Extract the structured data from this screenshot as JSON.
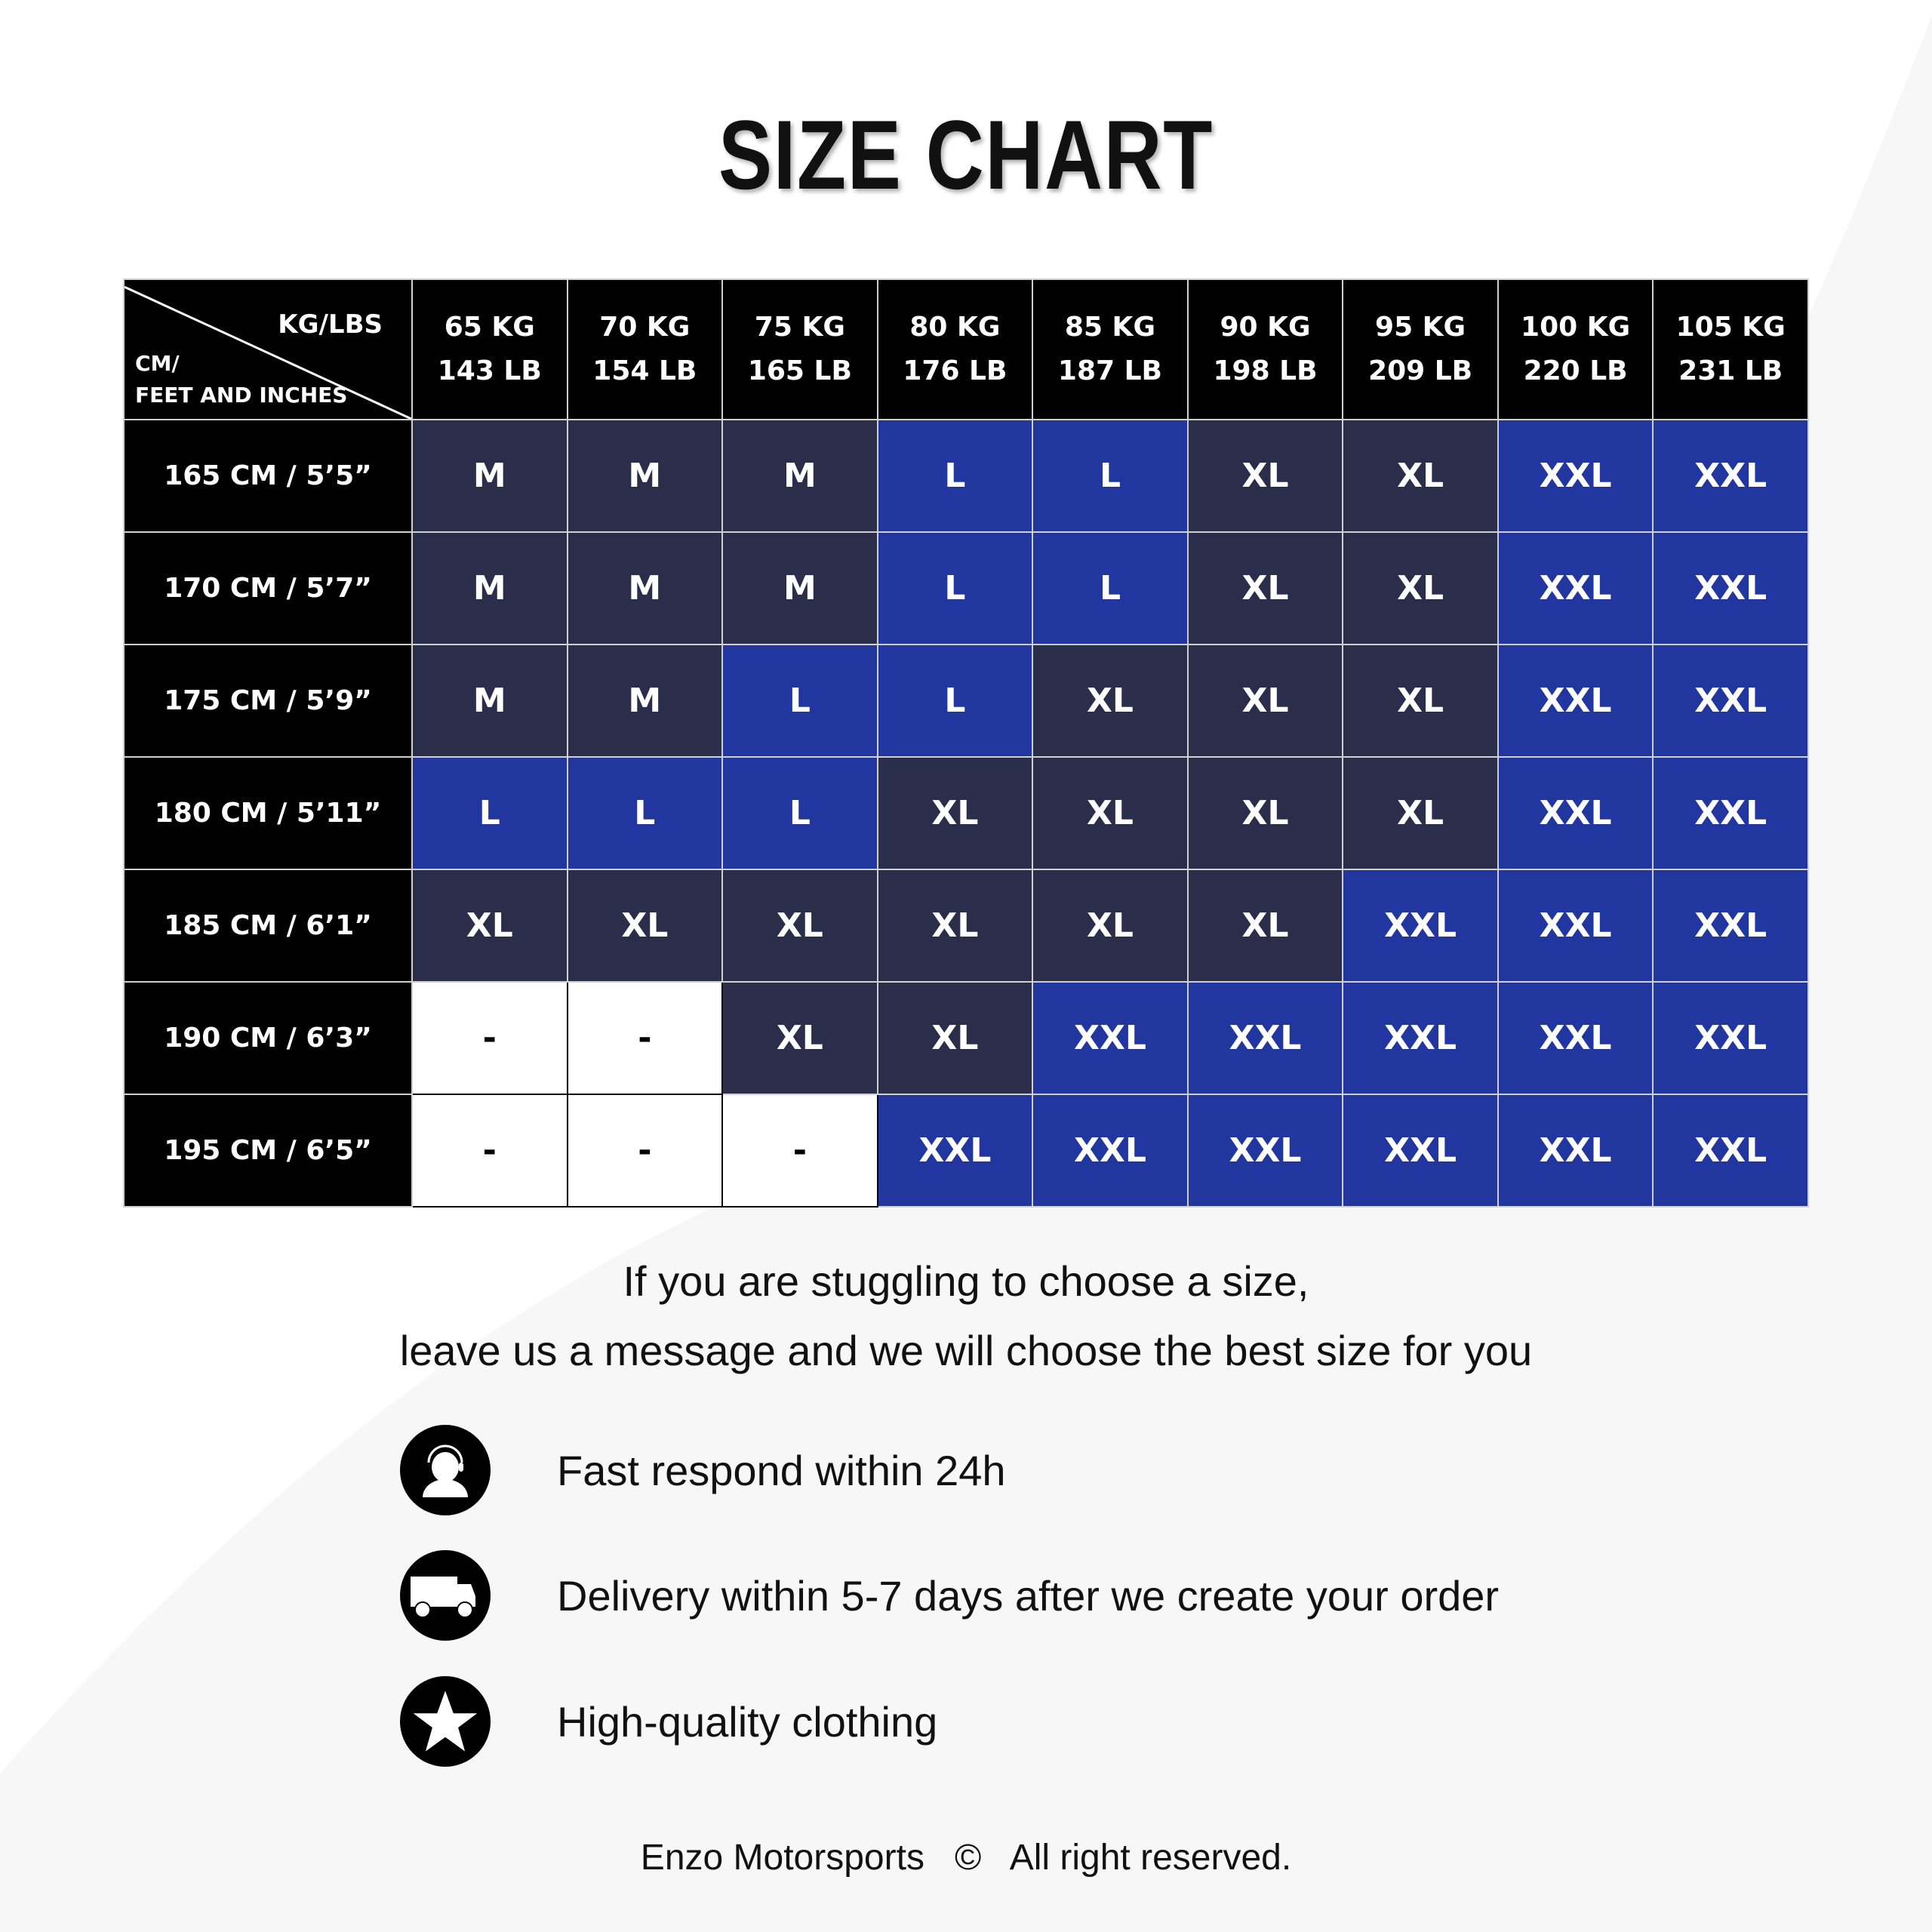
{
  "title": "SIZE CHART",
  "colors": {
    "dark": "#2b2e4a",
    "blue": "#2236a0",
    "header": "#000000"
  },
  "table": {
    "corner_top": "KG/LBS",
    "corner_bottom_1": "CM/",
    "corner_bottom_2": "FEET AND INCHES",
    "columns": [
      [
        "65 KG",
        "143 LB"
      ],
      [
        "70 KG",
        "154 LB"
      ],
      [
        "75 KG",
        "165 LB"
      ],
      [
        "80 KG",
        "176 LB"
      ],
      [
        "85 KG",
        "187 LB"
      ],
      [
        "90 KG",
        "198 LB"
      ],
      [
        "95 KG",
        "209 LB"
      ],
      [
        "100 KG",
        "220 LB"
      ],
      [
        "105 KG",
        "231 LB"
      ]
    ],
    "rows": [
      {
        "label": "165 CM / 5’5”",
        "cells": [
          "M",
          "M",
          "M",
          "L",
          "L",
          "XL",
          "XL",
          "XXL",
          "XXL"
        ]
      },
      {
        "label": "170 CM / 5’7”",
        "cells": [
          "M",
          "M",
          "M",
          "L",
          "L",
          "XL",
          "XL",
          "XXL",
          "XXL"
        ]
      },
      {
        "label": "175 CM / 5’9”",
        "cells": [
          "M",
          "M",
          "L",
          "L",
          "XL",
          "XL",
          "XL",
          "XXL",
          "XXL"
        ]
      },
      {
        "label": "180 CM / 5’11”",
        "cells": [
          "L",
          "L",
          "L",
          "XL",
          "XL",
          "XL",
          "XL",
          "XXL",
          "XXL"
        ]
      },
      {
        "label": "185 CM / 6’1”",
        "cells": [
          "XL",
          "XL",
          "XL",
          "XL",
          "XL",
          "XL",
          "XXL",
          "XXL",
          "XXL"
        ]
      },
      {
        "label": "190 CM / 6’3”",
        "cells": [
          "-",
          "-",
          "XL",
          "XL",
          "XXL",
          "XXL",
          "XXL",
          "XXL",
          "XXL"
        ]
      },
      {
        "label": "195 CM / 6’5”",
        "cells": [
          "-",
          "-",
          "-",
          "XXL",
          "XXL",
          "XXL",
          "XXL",
          "XXL",
          "XXL"
        ]
      }
    ]
  },
  "message": {
    "line1": "If you are stuggling to choose a size,",
    "line2": "leave us a message and we will choose the best size for you"
  },
  "features": [
    {
      "icon": "support-agent-icon",
      "text": "Fast respond within 24h"
    },
    {
      "icon": "delivery-truck-icon",
      "text": "Delivery within 5-7 days after we create your order"
    },
    {
      "icon": "star-icon",
      "text": "High-quality clothing"
    }
  ],
  "footer": {
    "brand": "Enzo Motorsports",
    "copyright_symbol": "©",
    "rights": "All right reserved."
  }
}
